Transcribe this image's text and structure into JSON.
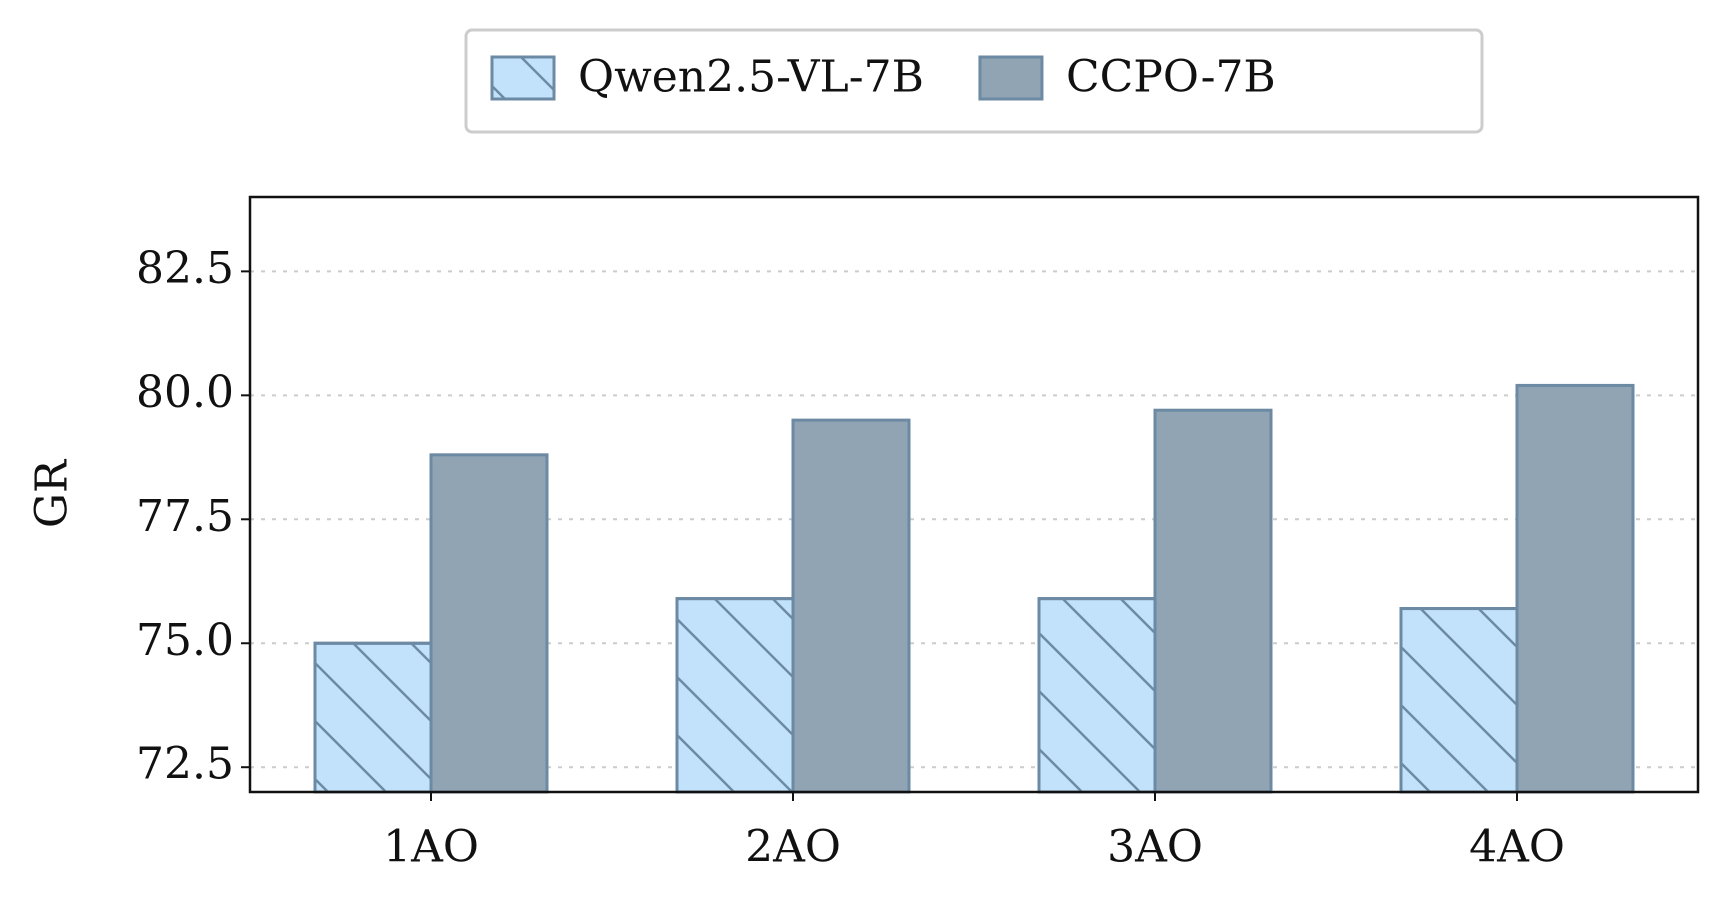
{
  "chart_data": {
    "type": "bar",
    "y_label": "GR",
    "categories": [
      "1AO",
      "2AO",
      "3AO",
      "4AO"
    ],
    "series": [
      {
        "name": "Qwen2.5-VL-7B",
        "color": "#c2e1fb",
        "hatch": true,
        "values": [
          75.0,
          75.9,
          75.9,
          75.7
        ]
      },
      {
        "name": "CCPO-7B",
        "color": "#91a4b4",
        "hatch": false,
        "values": [
          78.8,
          79.5,
          79.7,
          80.2
        ]
      }
    ],
    "edge_color": "#6c8aa3",
    "ylim": [
      72,
      84
    ],
    "yticks": [
      72.5,
      {
        "value": 75,
        "label": "75.0"
      },
      77.5,
      {
        "value": 80,
        "label": "80.0"
      },
      82.5
    ],
    "grid": true,
    "legend": "top"
  }
}
